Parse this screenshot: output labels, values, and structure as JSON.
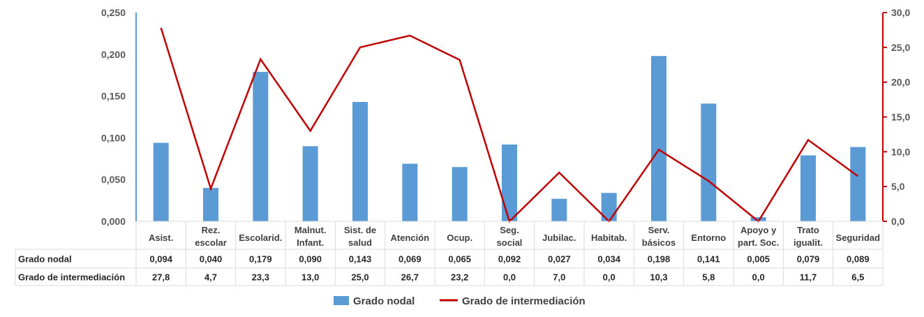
{
  "chart_data": {
    "type": "bar",
    "categories": [
      [
        "Asist."
      ],
      [
        "Rez.",
        "escolar"
      ],
      [
        "Escolarid."
      ],
      [
        "Malnut.",
        "Infant."
      ],
      [
        "Sist. de",
        "salud"
      ],
      [
        "Atención"
      ],
      [
        "Ocup."
      ],
      [
        "Seg.",
        "social"
      ],
      [
        "Jubilac."
      ],
      [
        "Habitab."
      ],
      [
        "Serv.",
        "básicos"
      ],
      [
        "Entorno"
      ],
      [
        "Apoyo y",
        "part. Soc."
      ],
      [
        "Trato",
        "igualit."
      ],
      [
        "Seguridad"
      ]
    ],
    "series": [
      {
        "name": "Grado nodal",
        "type": "bar",
        "axis": "left",
        "color": "#5b9bd5",
        "values": [
          0.094,
          0.04,
          0.179,
          0.09,
          0.143,
          0.069,
          0.065,
          0.092,
          0.027,
          0.034,
          0.198,
          0.141,
          0.005,
          0.079,
          0.089
        ],
        "labels": [
          "0,094",
          "0,040",
          "0,179",
          "0,090",
          "0,143",
          "0,069",
          "0,065",
          "0,092",
          "0,027",
          "0,034",
          "0,198",
          "0,141",
          "0,005",
          "0,079",
          "0,089"
        ]
      },
      {
        "name": "Grado de intermediación",
        "type": "line",
        "axis": "right",
        "color": "#c00000",
        "values": [
          27.8,
          4.7,
          23.3,
          13.0,
          25.0,
          26.7,
          23.2,
          0.0,
          7.0,
          0.0,
          10.3,
          5.8,
          0.0,
          11.7,
          6.5
        ],
        "labels": [
          "27,8",
          "4,7",
          "23,3",
          "13,0",
          "25,0",
          "26,7",
          "23,2",
          "0,0",
          "7,0",
          "0,0",
          "10,3",
          "5,8",
          "0,0",
          "11,7",
          "6,5"
        ]
      }
    ],
    "y_left": {
      "range": [
        0,
        0.25
      ],
      "ticks": [
        0,
        0.05,
        0.1,
        0.15,
        0.2,
        0.25
      ],
      "tick_labels": [
        "0,000",
        "0,050",
        "0,100",
        "0,150",
        "0,200",
        "0,250"
      ],
      "color": "#5b9bd5"
    },
    "y_right": {
      "range": [
        0,
        30
      ],
      "ticks": [
        0,
        5,
        10,
        15,
        20,
        25,
        30
      ],
      "tick_labels": [
        "0,0",
        "5,0",
        "10,0",
        "15,0",
        "20,0",
        "25,0",
        "30,0"
      ],
      "color": "#c00000"
    },
    "data_table": true,
    "grid": false,
    "legend": "bottom"
  }
}
